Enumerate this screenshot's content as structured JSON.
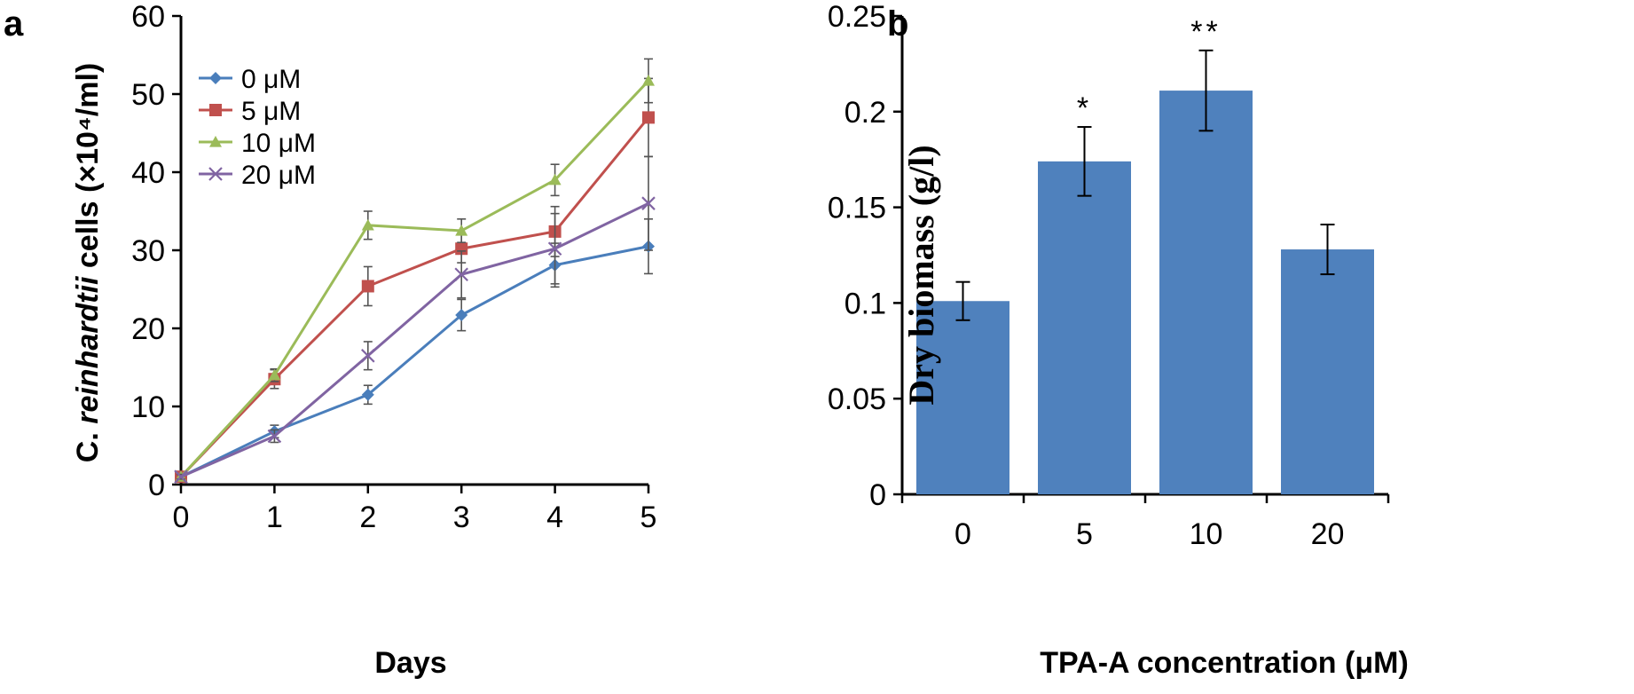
{
  "colors": {
    "0uM": "#4a7ebb",
    "5uM": "#c0504d",
    "10uM": "#9bbb59",
    "20uM": "#8064a2",
    "bar": "#4f81bd"
  },
  "panel_labels": {
    "a": "a",
    "b": "b"
  },
  "chart_data": [
    {
      "type": "line",
      "panel": "a",
      "xlabel": "Days",
      "ylabel_prefix": "C. ",
      "ylabel_italic": "reinhardtii",
      "ylabel_suffix": " cells (×10⁴/ml)",
      "x": [
        0,
        1,
        2,
        3,
        4,
        5
      ],
      "xticks": [
        "0",
        "1",
        "2",
        "3",
        "4",
        "5"
      ],
      "ylim": [
        0,
        60
      ],
      "yticks": [
        "0",
        "10",
        "20",
        "30",
        "40",
        "50",
        "60"
      ],
      "legend_position": "top-left",
      "series": [
        {
          "name": "0 μM",
          "marker": "diamond",
          "color": "#4a7ebb",
          "values": [
            1.0,
            6.8,
            11.5,
            21.7,
            28.1,
            30.5
          ],
          "errors": [
            0.3,
            0.8,
            1.2,
            2.0,
            2.8,
            3.5
          ]
        },
        {
          "name": "5 μM",
          "marker": "square",
          "color": "#c0504d",
          "values": [
            1.0,
            13.5,
            25.4,
            30.2,
            32.4,
            47.0
          ],
          "errors": [
            0.3,
            1.2,
            2.5,
            1.8,
            3.2,
            5.0
          ]
        },
        {
          "name": "10 μM",
          "marker": "triangle",
          "color": "#9bbb59",
          "values": [
            1.0,
            14.0,
            33.2,
            32.5,
            39.0,
            51.7
          ],
          "errors": [
            0.3,
            0.8,
            1.8,
            1.5,
            2.0,
            2.8
          ]
        },
        {
          "name": "20 μM",
          "marker": "x",
          "color": "#8064a2",
          "values": [
            1.0,
            6.2,
            16.5,
            26.9,
            30.2,
            36.0
          ],
          "errors": [
            0.3,
            0.8,
            1.8,
            3.0,
            4.5,
            6.0
          ]
        }
      ]
    },
    {
      "type": "bar",
      "panel": "b",
      "xlabel": "TPA-A concentration (μM)",
      "ylabel": "Dry biomass (g/l)",
      "categories": [
        "0",
        "5",
        "10",
        "20"
      ],
      "values": [
        0.101,
        0.174,
        0.211,
        0.128
      ],
      "errors": [
        0.01,
        0.018,
        0.021,
        0.013
      ],
      "significance": [
        "",
        "*",
        "**",
        ""
      ],
      "ylim": [
        0,
        0.25
      ],
      "yticks": [
        "0",
        "0.05",
        "0.1",
        "0.15",
        "0.2",
        "0.25"
      ]
    }
  ]
}
